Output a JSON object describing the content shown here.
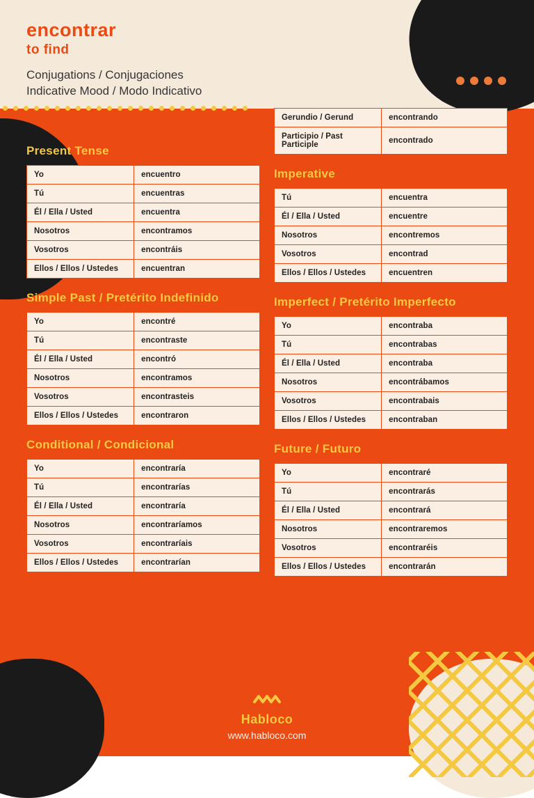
{
  "colors": {
    "orange": "#ec4a13",
    "cream": "#f5e9da",
    "table_bg": "#fbeee2",
    "yellow": "#f5c842",
    "black": "#1a1a1a",
    "text": "#222222"
  },
  "typography": {
    "title_fontsize": 27,
    "section_fontsize": 17,
    "cell_fontsize": 11.5
  },
  "header": {
    "verb": "encontrar",
    "translation": "to find",
    "line1": "Conjugations / Conjugaciones",
    "line2": "Indicative Mood / Modo Indicativo"
  },
  "participles": {
    "rows": [
      [
        "Gerundio / Gerund",
        "encontrando"
      ],
      [
        "Participio / Past Participle",
        "encontrado"
      ]
    ]
  },
  "tenses": {
    "present": {
      "title": "Present Tense",
      "rows": [
        [
          "Yo",
          "encuentro"
        ],
        [
          "Tú",
          "encuentras"
        ],
        [
          "Él / Ella / Usted",
          "encuentra"
        ],
        [
          "Nosotros",
          "encontramos"
        ],
        [
          "Vosotros",
          "encontráis"
        ],
        [
          "Ellos / Ellos / Ustedes",
          "encuentran"
        ]
      ]
    },
    "imperative": {
      "title": "Imperative",
      "rows": [
        [
          "Tú",
          "encuentra"
        ],
        [
          "Él / Ella / Usted",
          "encuentre"
        ],
        [
          "Nosotros",
          "encontremos"
        ],
        [
          "Vosotros",
          "encontrad"
        ],
        [
          "Ellos / Ellos / Ustedes",
          "encuentren"
        ]
      ]
    },
    "simple_past": {
      "title": "Simple Past / Pretérito Indefinido",
      "rows": [
        [
          "Yo",
          "encontré"
        ],
        [
          "Tú",
          "encontraste"
        ],
        [
          "Él / Ella / Usted",
          "encontró"
        ],
        [
          "Nosotros",
          "encontramos"
        ],
        [
          "Vosotros",
          "encontrasteis"
        ],
        [
          "Ellos / Ellos / Ustedes",
          "encontraron"
        ]
      ]
    },
    "imperfect": {
      "title": "Imperfect / Pretérito Imperfecto",
      "rows": [
        [
          "Yo",
          "encontraba"
        ],
        [
          "Tú",
          "encontrabas"
        ],
        [
          "Él / Ella / Usted",
          "encontraba"
        ],
        [
          "Nosotros",
          "encontrábamos"
        ],
        [
          "Vosotros",
          "encontrabais"
        ],
        [
          "Ellos / Ellos / Ustedes",
          "encontraban"
        ]
      ]
    },
    "conditional": {
      "title": "Conditional / Condicional",
      "rows": [
        [
          "Yo",
          "encontraría"
        ],
        [
          "Tú",
          "encontrarías"
        ],
        [
          "Él / Ella / Usted",
          "encontraría"
        ],
        [
          "Nosotros",
          "encontraríamos"
        ],
        [
          "Vosotros",
          "encontraríais"
        ],
        [
          "Ellos / Ellos / Ustedes",
          "encontrarían"
        ]
      ]
    },
    "future": {
      "title": "Future / Futuro",
      "rows": [
        [
          "Yo",
          "encontraré"
        ],
        [
          "Tú",
          "encontrarás"
        ],
        [
          "Él / Ella / Usted",
          "encontrará"
        ],
        [
          "Nosotros",
          "encontraremos"
        ],
        [
          "Vosotros",
          "encontraréis"
        ],
        [
          "Ellos / Ellos / Ustedes",
          "encontrarán"
        ]
      ]
    }
  },
  "footer": {
    "brand": "Habloco",
    "url": "www.habloco.com"
  }
}
